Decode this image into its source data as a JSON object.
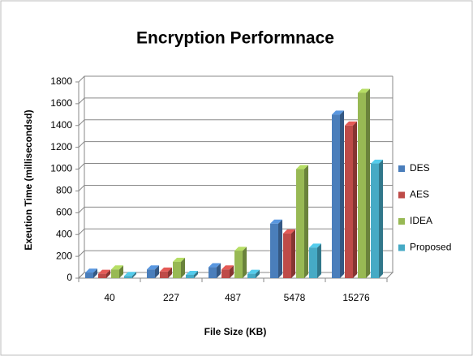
{
  "chart_data": {
    "type": "bar3d",
    "title": "Encryption Performnace",
    "x_label": "File Size (KB)",
    "y_label": "Exeution Time (millisecondsd)",
    "categories": [
      "40",
      "227",
      "487",
      "5478",
      "15276"
    ],
    "series": [
      {
        "name": "DES",
        "color": "#4a7ebb",
        "values": [
          50,
          80,
          100,
          500,
          1500
        ]
      },
      {
        "name": "AES",
        "color": "#be4b48",
        "values": [
          40,
          60,
          80,
          410,
          1400
        ]
      },
      {
        "name": "IDEA",
        "color": "#98b954",
        "values": [
          80,
          150,
          250,
          1000,
          1700
        ]
      },
      {
        "name": "Proposed",
        "color": "#46aac5",
        "values": [
          20,
          30,
          40,
          280,
          1050
        ]
      }
    ],
    "ylim": [
      0,
      1800
    ],
    "yticks": [
      0,
      200,
      400,
      600,
      800,
      1000,
      1200,
      1400,
      1600,
      1800
    ],
    "grid": true,
    "legend": "right"
  }
}
